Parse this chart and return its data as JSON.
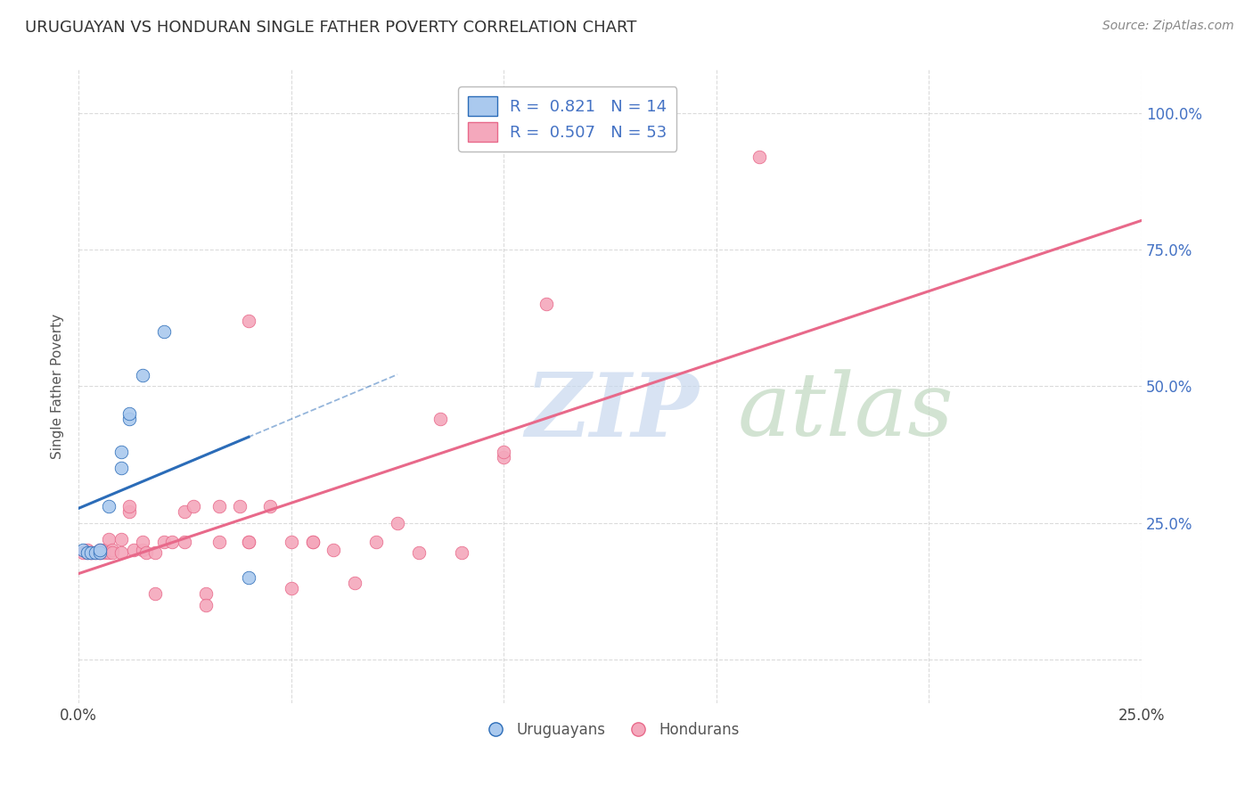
{
  "title": "URUGUAYAN VS HONDURAN SINGLE FATHER POVERTY CORRELATION CHART",
  "source": "Source: ZipAtlas.com",
  "ylabel": "Single Father Poverty",
  "xlim": [
    0.0,
    0.25
  ],
  "ylim": [
    -0.08,
    1.08
  ],
  "uruguayan_color": "#aac9ee",
  "honduran_color": "#f4a8bc",
  "uruguayan_line_color": "#2b6cb8",
  "honduran_line_color": "#e8698a",
  "legend_uruguayan_label": "R =  0.821   N = 14",
  "legend_honduran_label": "R =  0.507   N = 53",
  "legend_bottom_uruguayan": "Uruguayans",
  "legend_bottom_honduran": "Hondurans",
  "uruguayan_scatter": [
    [
      0.001,
      0.2
    ],
    [
      0.002,
      0.195
    ],
    [
      0.003,
      0.195
    ],
    [
      0.004,
      0.195
    ],
    [
      0.005,
      0.195
    ],
    [
      0.005,
      0.2
    ],
    [
      0.007,
      0.28
    ],
    [
      0.01,
      0.35
    ],
    [
      0.01,
      0.38
    ],
    [
      0.012,
      0.44
    ],
    [
      0.012,
      0.45
    ],
    [
      0.015,
      0.52
    ],
    [
      0.02,
      0.6
    ],
    [
      0.04,
      0.15
    ]
  ],
  "honduran_scatter": [
    [
      0.001,
      0.195
    ],
    [
      0.002,
      0.195
    ],
    [
      0.002,
      0.2
    ],
    [
      0.003,
      0.195
    ],
    [
      0.003,
      0.195
    ],
    [
      0.004,
      0.195
    ],
    [
      0.005,
      0.195
    ],
    [
      0.005,
      0.2
    ],
    [
      0.005,
      0.195
    ],
    [
      0.006,
      0.195
    ],
    [
      0.006,
      0.2
    ],
    [
      0.007,
      0.22
    ],
    [
      0.007,
      0.195
    ],
    [
      0.008,
      0.2
    ],
    [
      0.008,
      0.195
    ],
    [
      0.01,
      0.195
    ],
    [
      0.01,
      0.22
    ],
    [
      0.012,
      0.27
    ],
    [
      0.012,
      0.28
    ],
    [
      0.013,
      0.2
    ],
    [
      0.015,
      0.2
    ],
    [
      0.015,
      0.215
    ],
    [
      0.016,
      0.195
    ],
    [
      0.018,
      0.195
    ],
    [
      0.018,
      0.12
    ],
    [
      0.02,
      0.215
    ],
    [
      0.022,
      0.215
    ],
    [
      0.025,
      0.27
    ],
    [
      0.025,
      0.215
    ],
    [
      0.027,
      0.28
    ],
    [
      0.03,
      0.12
    ],
    [
      0.03,
      0.1
    ],
    [
      0.033,
      0.28
    ],
    [
      0.033,
      0.215
    ],
    [
      0.038,
      0.28
    ],
    [
      0.04,
      0.215
    ],
    [
      0.04,
      0.215
    ],
    [
      0.045,
      0.28
    ],
    [
      0.05,
      0.13
    ],
    [
      0.05,
      0.215
    ],
    [
      0.055,
      0.215
    ],
    [
      0.055,
      0.215
    ],
    [
      0.06,
      0.2
    ],
    [
      0.065,
      0.14
    ],
    [
      0.07,
      0.215
    ],
    [
      0.075,
      0.25
    ],
    [
      0.08,
      0.195
    ],
    [
      0.085,
      0.44
    ],
    [
      0.09,
      0.195
    ],
    [
      0.1,
      0.37
    ],
    [
      0.1,
      0.38
    ],
    [
      0.11,
      0.65
    ],
    [
      0.16,
      0.92
    ],
    [
      0.04,
      0.62
    ]
  ],
  "watermark_zip_color": "#c8d8ee",
  "watermark_atlas_color": "#c0d8c0",
  "background_color": "#ffffff",
  "grid_color": "#cccccc",
  "ytick_color": "#4472c4",
  "title_fontsize": 13,
  "source_fontsize": 10
}
